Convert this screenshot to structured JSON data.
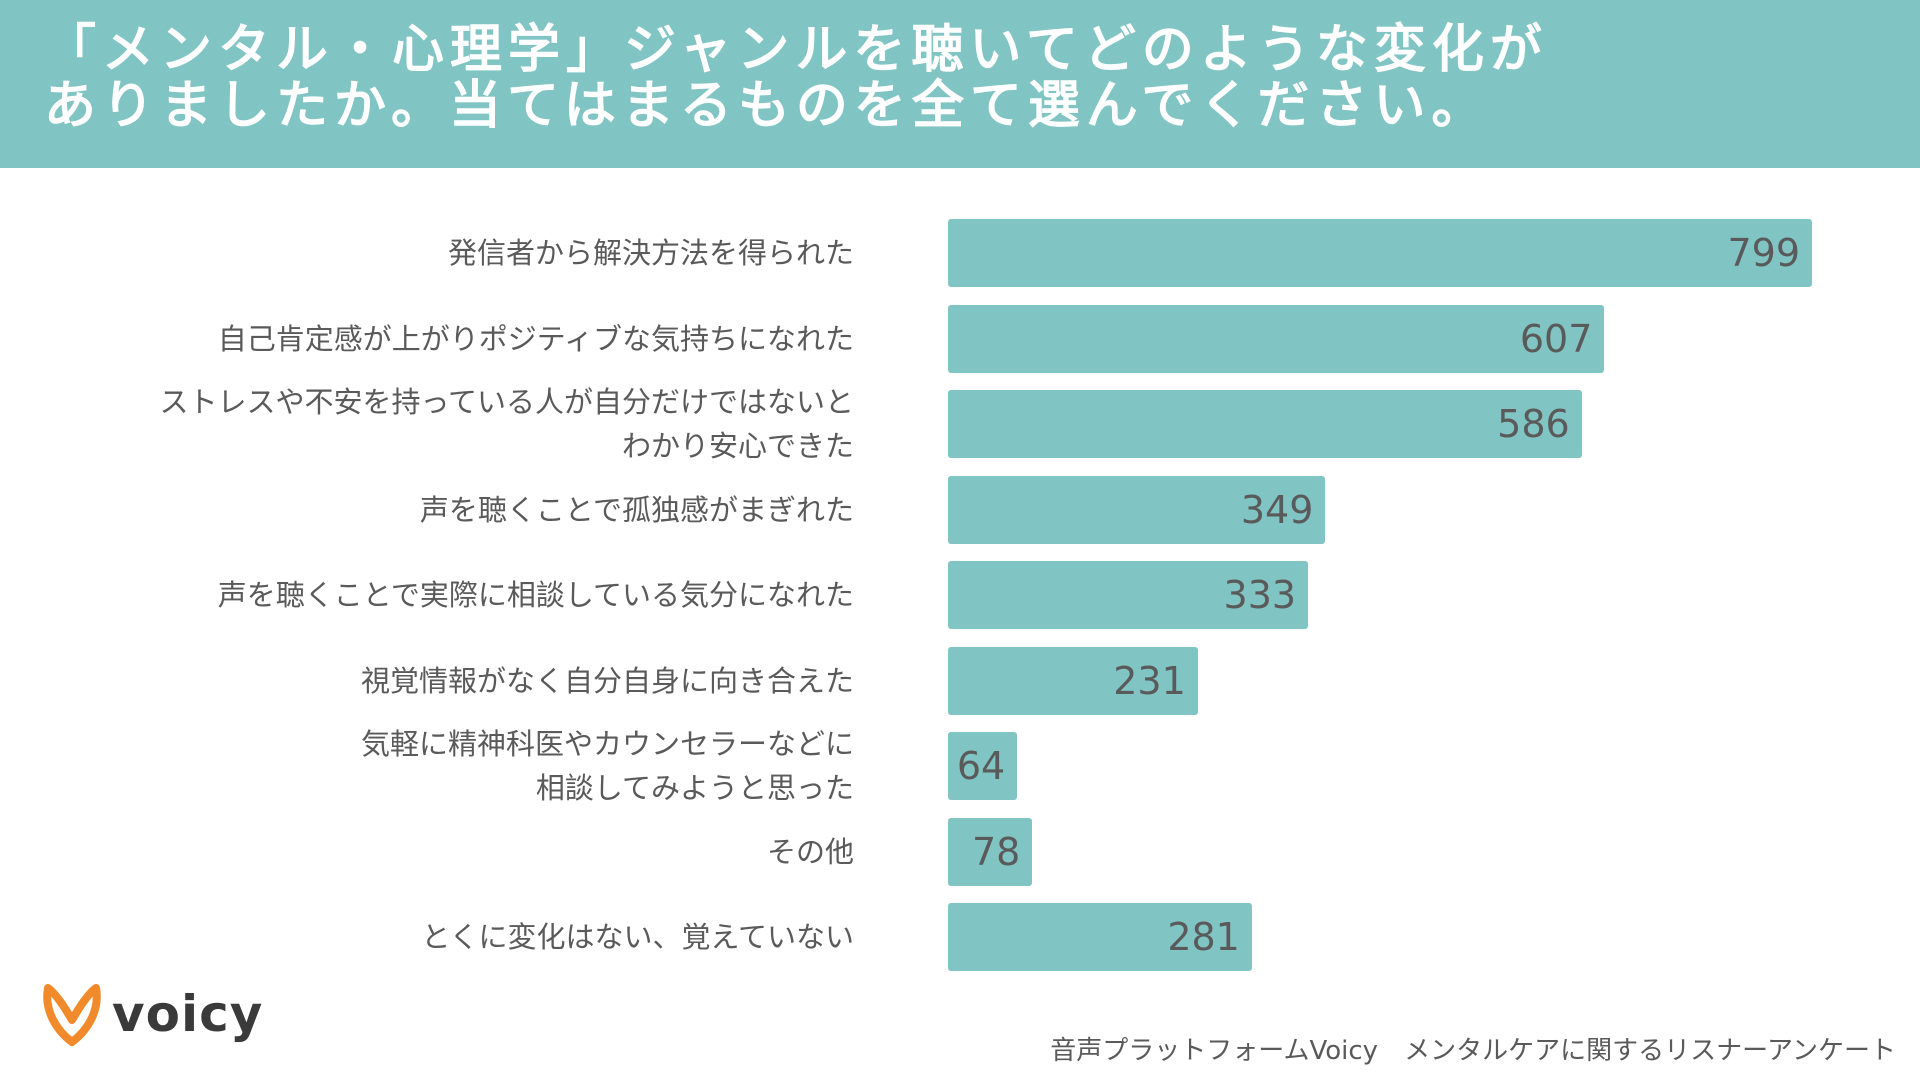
{
  "colors": {
    "accent": "#80c4c3",
    "text": "#5a5a5a",
    "logo_orange": "#f08a2a",
    "header_text": "#ffffff"
  },
  "logo": {
    "text": "voicy"
  },
  "footer": {
    "text": "音声プラットフォームVoicy　メンタルケアに関するリスナーアンケート"
  },
  "chart_data": {
    "type": "bar",
    "orientation": "horizontal",
    "title_lines": [
      "「メンタル・心理学」ジャンルを聴いてどのような変化が",
      "ありましたか。当てはまるものを全て選んでください。"
    ],
    "xlim": [
      0,
      799
    ],
    "grid": false,
    "legend": "none",
    "categories": [
      [
        "発信者から解決方法を得られた"
      ],
      [
        "自己肯定感が上がりポジティブな気持ちになれた"
      ],
      [
        "ストレスや不安を持っている人が自分だけではないと",
        "わかり安心できた"
      ],
      [
        "声を聴くことで孤独感がまぎれた"
      ],
      [
        "声を聴くことで実際に相談している気分になれた"
      ],
      [
        "視覚情報がなく自分自身に向き合えた"
      ],
      [
        "気軽に精神科医やカウンセラーなどに",
        "相談してみようと思った"
      ],
      [
        "その他"
      ],
      [
        "とくに変化はない、覚えていない"
      ]
    ],
    "values": [
      799,
      607,
      586,
      349,
      333,
      231,
      64,
      78,
      281
    ]
  }
}
